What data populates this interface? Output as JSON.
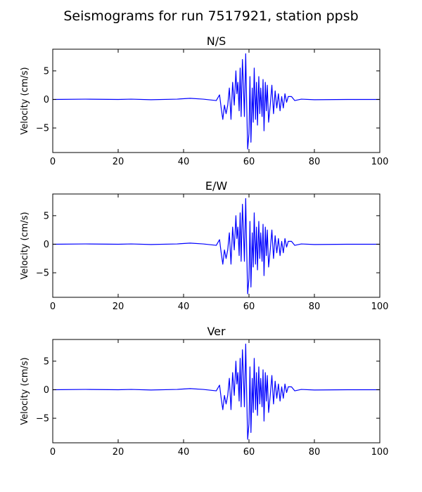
{
  "figure": {
    "title": "Seismograms for run 7517921, station ppsb"
  },
  "chart_data": [
    {
      "type": "line",
      "title": "N/S",
      "xlabel": "",
      "ylabel": "Velocity (cm/s)",
      "xlim": [
        0,
        100
      ],
      "ylim": [
        -9.3,
        8.8
      ],
      "xticks": [
        0,
        20,
        40,
        60,
        80,
        100
      ],
      "yticks": [
        -5,
        0,
        5
      ],
      "grid": false,
      "series": [
        {
          "color": "#0000ff",
          "points": [
            [
              0,
              0
            ],
            [
              10,
              0.05
            ],
            [
              20,
              0
            ],
            [
              24,
              0.05
            ],
            [
              30,
              -0.05
            ],
            [
              38,
              0.05
            ],
            [
              42,
              0.2
            ],
            [
              46,
              0.05
            ],
            [
              50,
              -0.2
            ],
            [
              51,
              0.8
            ],
            [
              51.5,
              -1.5
            ],
            [
              52,
              -3.5
            ],
            [
              52.5,
              -1.0
            ],
            [
              53,
              -2.5
            ],
            [
              53.5,
              -1
            ],
            [
              54,
              2.0
            ],
            [
              54.5,
              -3.5
            ],
            [
              55,
              3.0
            ],
            [
              55.5,
              -1.0
            ],
            [
              56,
              5.0
            ],
            [
              56.3,
              1.0
            ],
            [
              56.6,
              3.0
            ],
            [
              57,
              -2.0
            ],
            [
              57.3,
              5.5
            ],
            [
              57.6,
              -3.0
            ],
            [
              58,
              7.0
            ],
            [
              58.3,
              2.5
            ],
            [
              58.6,
              -3.0
            ],
            [
              59,
              8.0
            ],
            [
              59.3,
              -1.0
            ],
            [
              59.6,
              -8.7
            ],
            [
              60,
              -6.0
            ],
            [
              60.3,
              4.0
            ],
            [
              60.6,
              -7.5
            ],
            [
              61,
              2.0
            ],
            [
              61.3,
              -4.0
            ],
            [
              61.6,
              5.5
            ],
            [
              62,
              -3.5
            ],
            [
              62.3,
              3.0
            ],
            [
              62.6,
              -4.5
            ],
            [
              63,
              4.0
            ],
            [
              63.3,
              -2.5
            ],
            [
              63.6,
              2.0
            ],
            [
              64,
              -3.0
            ],
            [
              64.3,
              3.5
            ],
            [
              64.6,
              -5.5
            ],
            [
              65,
              3.0
            ],
            [
              65.3,
              -2.0
            ],
            [
              65.6,
              2.5
            ],
            [
              66,
              -4.0
            ],
            [
              66.5,
              -1.0
            ],
            [
              67,
              2.5
            ],
            [
              67.5,
              -2.5
            ],
            [
              68,
              1.5
            ],
            [
              68.5,
              -1.5
            ],
            [
              69,
              1.0
            ],
            [
              69.5,
              -2.0
            ],
            [
              70,
              0.5
            ],
            [
              70.5,
              -1.5
            ],
            [
              71,
              1.0
            ],
            [
              71.5,
              -0.5
            ],
            [
              72,
              0.5
            ],
            [
              73,
              0.5
            ],
            [
              74,
              -0.2
            ],
            [
              76,
              0.05
            ],
            [
              80,
              -0.05
            ],
            [
              90,
              0
            ],
            [
              100,
              0
            ]
          ]
        }
      ]
    },
    {
      "type": "line",
      "title": "E/W",
      "xlabel": "",
      "ylabel": "Velocity (cm/s)",
      "xlim": [
        0,
        100
      ],
      "ylim": [
        -9.3,
        8.8
      ],
      "xticks": [
        0,
        20,
        40,
        60,
        80,
        100
      ],
      "yticks": [
        -5,
        0,
        5
      ],
      "grid": false,
      "series": [
        {
          "color": "#0000ff",
          "points": [
            [
              0,
              0
            ],
            [
              10,
              0.05
            ],
            [
              20,
              0
            ],
            [
              24,
              0.05
            ],
            [
              30,
              -0.05
            ],
            [
              38,
              0.05
            ],
            [
              42,
              0.2
            ],
            [
              46,
              0.05
            ],
            [
              50,
              -0.2
            ],
            [
              51,
              0.8
            ],
            [
              51.5,
              -1.5
            ],
            [
              52,
              -3.5
            ],
            [
              52.5,
              -1.0
            ],
            [
              53,
              -2.5
            ],
            [
              53.5,
              -1
            ],
            [
              54,
              2.0
            ],
            [
              54.5,
              -3.5
            ],
            [
              55,
              3.0
            ],
            [
              55.5,
              -1.0
            ],
            [
              56,
              5.0
            ],
            [
              56.3,
              1.0
            ],
            [
              56.6,
              3.0
            ],
            [
              57,
              -2.0
            ],
            [
              57.3,
              5.5
            ],
            [
              57.6,
              -3.0
            ],
            [
              58,
              7.0
            ],
            [
              58.3,
              2.5
            ],
            [
              58.6,
              -3.0
            ],
            [
              59,
              8.0
            ],
            [
              59.3,
              -1.0
            ],
            [
              59.6,
              -8.7
            ],
            [
              60,
              -6.0
            ],
            [
              60.3,
              4.0
            ],
            [
              60.6,
              -7.5
            ],
            [
              61,
              2.0
            ],
            [
              61.3,
              -4.0
            ],
            [
              61.6,
              5.5
            ],
            [
              62,
              -3.5
            ],
            [
              62.3,
              3.0
            ],
            [
              62.6,
              -4.5
            ],
            [
              63,
              4.0
            ],
            [
              63.3,
              -2.5
            ],
            [
              63.6,
              2.0
            ],
            [
              64,
              -3.0
            ],
            [
              64.3,
              3.5
            ],
            [
              64.6,
              -5.5
            ],
            [
              65,
              3.0
            ],
            [
              65.3,
              -2.0
            ],
            [
              65.6,
              2.5
            ],
            [
              66,
              -4.0
            ],
            [
              66.5,
              -1.0
            ],
            [
              67,
              2.5
            ],
            [
              67.5,
              -2.5
            ],
            [
              68,
              1.5
            ],
            [
              68.5,
              -1.5
            ],
            [
              69,
              1.0
            ],
            [
              69.5,
              -2.0
            ],
            [
              70,
              0.5
            ],
            [
              70.5,
              -1.5
            ],
            [
              71,
              1.0
            ],
            [
              71.5,
              -0.5
            ],
            [
              72,
              0.5
            ],
            [
              73,
              0.5
            ],
            [
              74,
              -0.2
            ],
            [
              76,
              0.05
            ],
            [
              80,
              -0.05
            ],
            [
              90,
              0
            ],
            [
              100,
              0
            ]
          ]
        }
      ]
    },
    {
      "type": "line",
      "title": "Ver",
      "xlabel": "",
      "ylabel": "Velocity (cm/s)",
      "xlim": [
        0,
        100
      ],
      "ylim": [
        -9.3,
        8.8
      ],
      "xticks": [
        0,
        20,
        40,
        60,
        80,
        100
      ],
      "yticks": [
        -5,
        0,
        5
      ],
      "grid": false,
      "series": [
        {
          "color": "#0000ff",
          "points": [
            [
              0,
              0
            ],
            [
              10,
              0.05
            ],
            [
              20,
              0
            ],
            [
              24,
              0.05
            ],
            [
              30,
              -0.05
            ],
            [
              38,
              0.05
            ],
            [
              42,
              0.2
            ],
            [
              46,
              0.05
            ],
            [
              50,
              -0.2
            ],
            [
              51,
              0.8
            ],
            [
              51.5,
              -1.5
            ],
            [
              52,
              -3.5
            ],
            [
              52.5,
              -1.0
            ],
            [
              53,
              -2.5
            ],
            [
              53.5,
              -1
            ],
            [
              54,
              2.0
            ],
            [
              54.5,
              -3.5
            ],
            [
              55,
              3.0
            ],
            [
              55.5,
              -1.0
            ],
            [
              56,
              5.0
            ],
            [
              56.3,
              1.0
            ],
            [
              56.6,
              3.0
            ],
            [
              57,
              -2.0
            ],
            [
              57.3,
              5.5
            ],
            [
              57.6,
              -3.0
            ],
            [
              58,
              7.0
            ],
            [
              58.3,
              2.5
            ],
            [
              58.6,
              -3.0
            ],
            [
              59,
              8.0
            ],
            [
              59.3,
              -1.0
            ],
            [
              59.6,
              -8.7
            ],
            [
              60,
              -6.0
            ],
            [
              60.3,
              4.0
            ],
            [
              60.6,
              -7.5
            ],
            [
              61,
              2.0
            ],
            [
              61.3,
              -4.0
            ],
            [
              61.6,
              5.5
            ],
            [
              62,
              -3.5
            ],
            [
              62.3,
              3.0
            ],
            [
              62.6,
              -4.5
            ],
            [
              63,
              4.0
            ],
            [
              63.3,
              -2.5
            ],
            [
              63.6,
              2.0
            ],
            [
              64,
              -3.0
            ],
            [
              64.3,
              3.5
            ],
            [
              64.6,
              -5.5
            ],
            [
              65,
              3.0
            ],
            [
              65.3,
              -2.0
            ],
            [
              65.6,
              2.5
            ],
            [
              66,
              -4.0
            ],
            [
              66.5,
              -1.0
            ],
            [
              67,
              2.5
            ],
            [
              67.5,
              -2.5
            ],
            [
              68,
              1.5
            ],
            [
              68.5,
              -1.5
            ],
            [
              69,
              1.0
            ],
            [
              69.5,
              -2.0
            ],
            [
              70,
              0.5
            ],
            [
              70.5,
              -1.5
            ],
            [
              71,
              1.0
            ],
            [
              71.5,
              -0.5
            ],
            [
              72,
              0.5
            ],
            [
              73,
              0.5
            ],
            [
              74,
              -0.2
            ],
            [
              76,
              0.05
            ],
            [
              80,
              -0.05
            ],
            [
              90,
              0
            ],
            [
              100,
              0
            ]
          ]
        }
      ]
    }
  ]
}
